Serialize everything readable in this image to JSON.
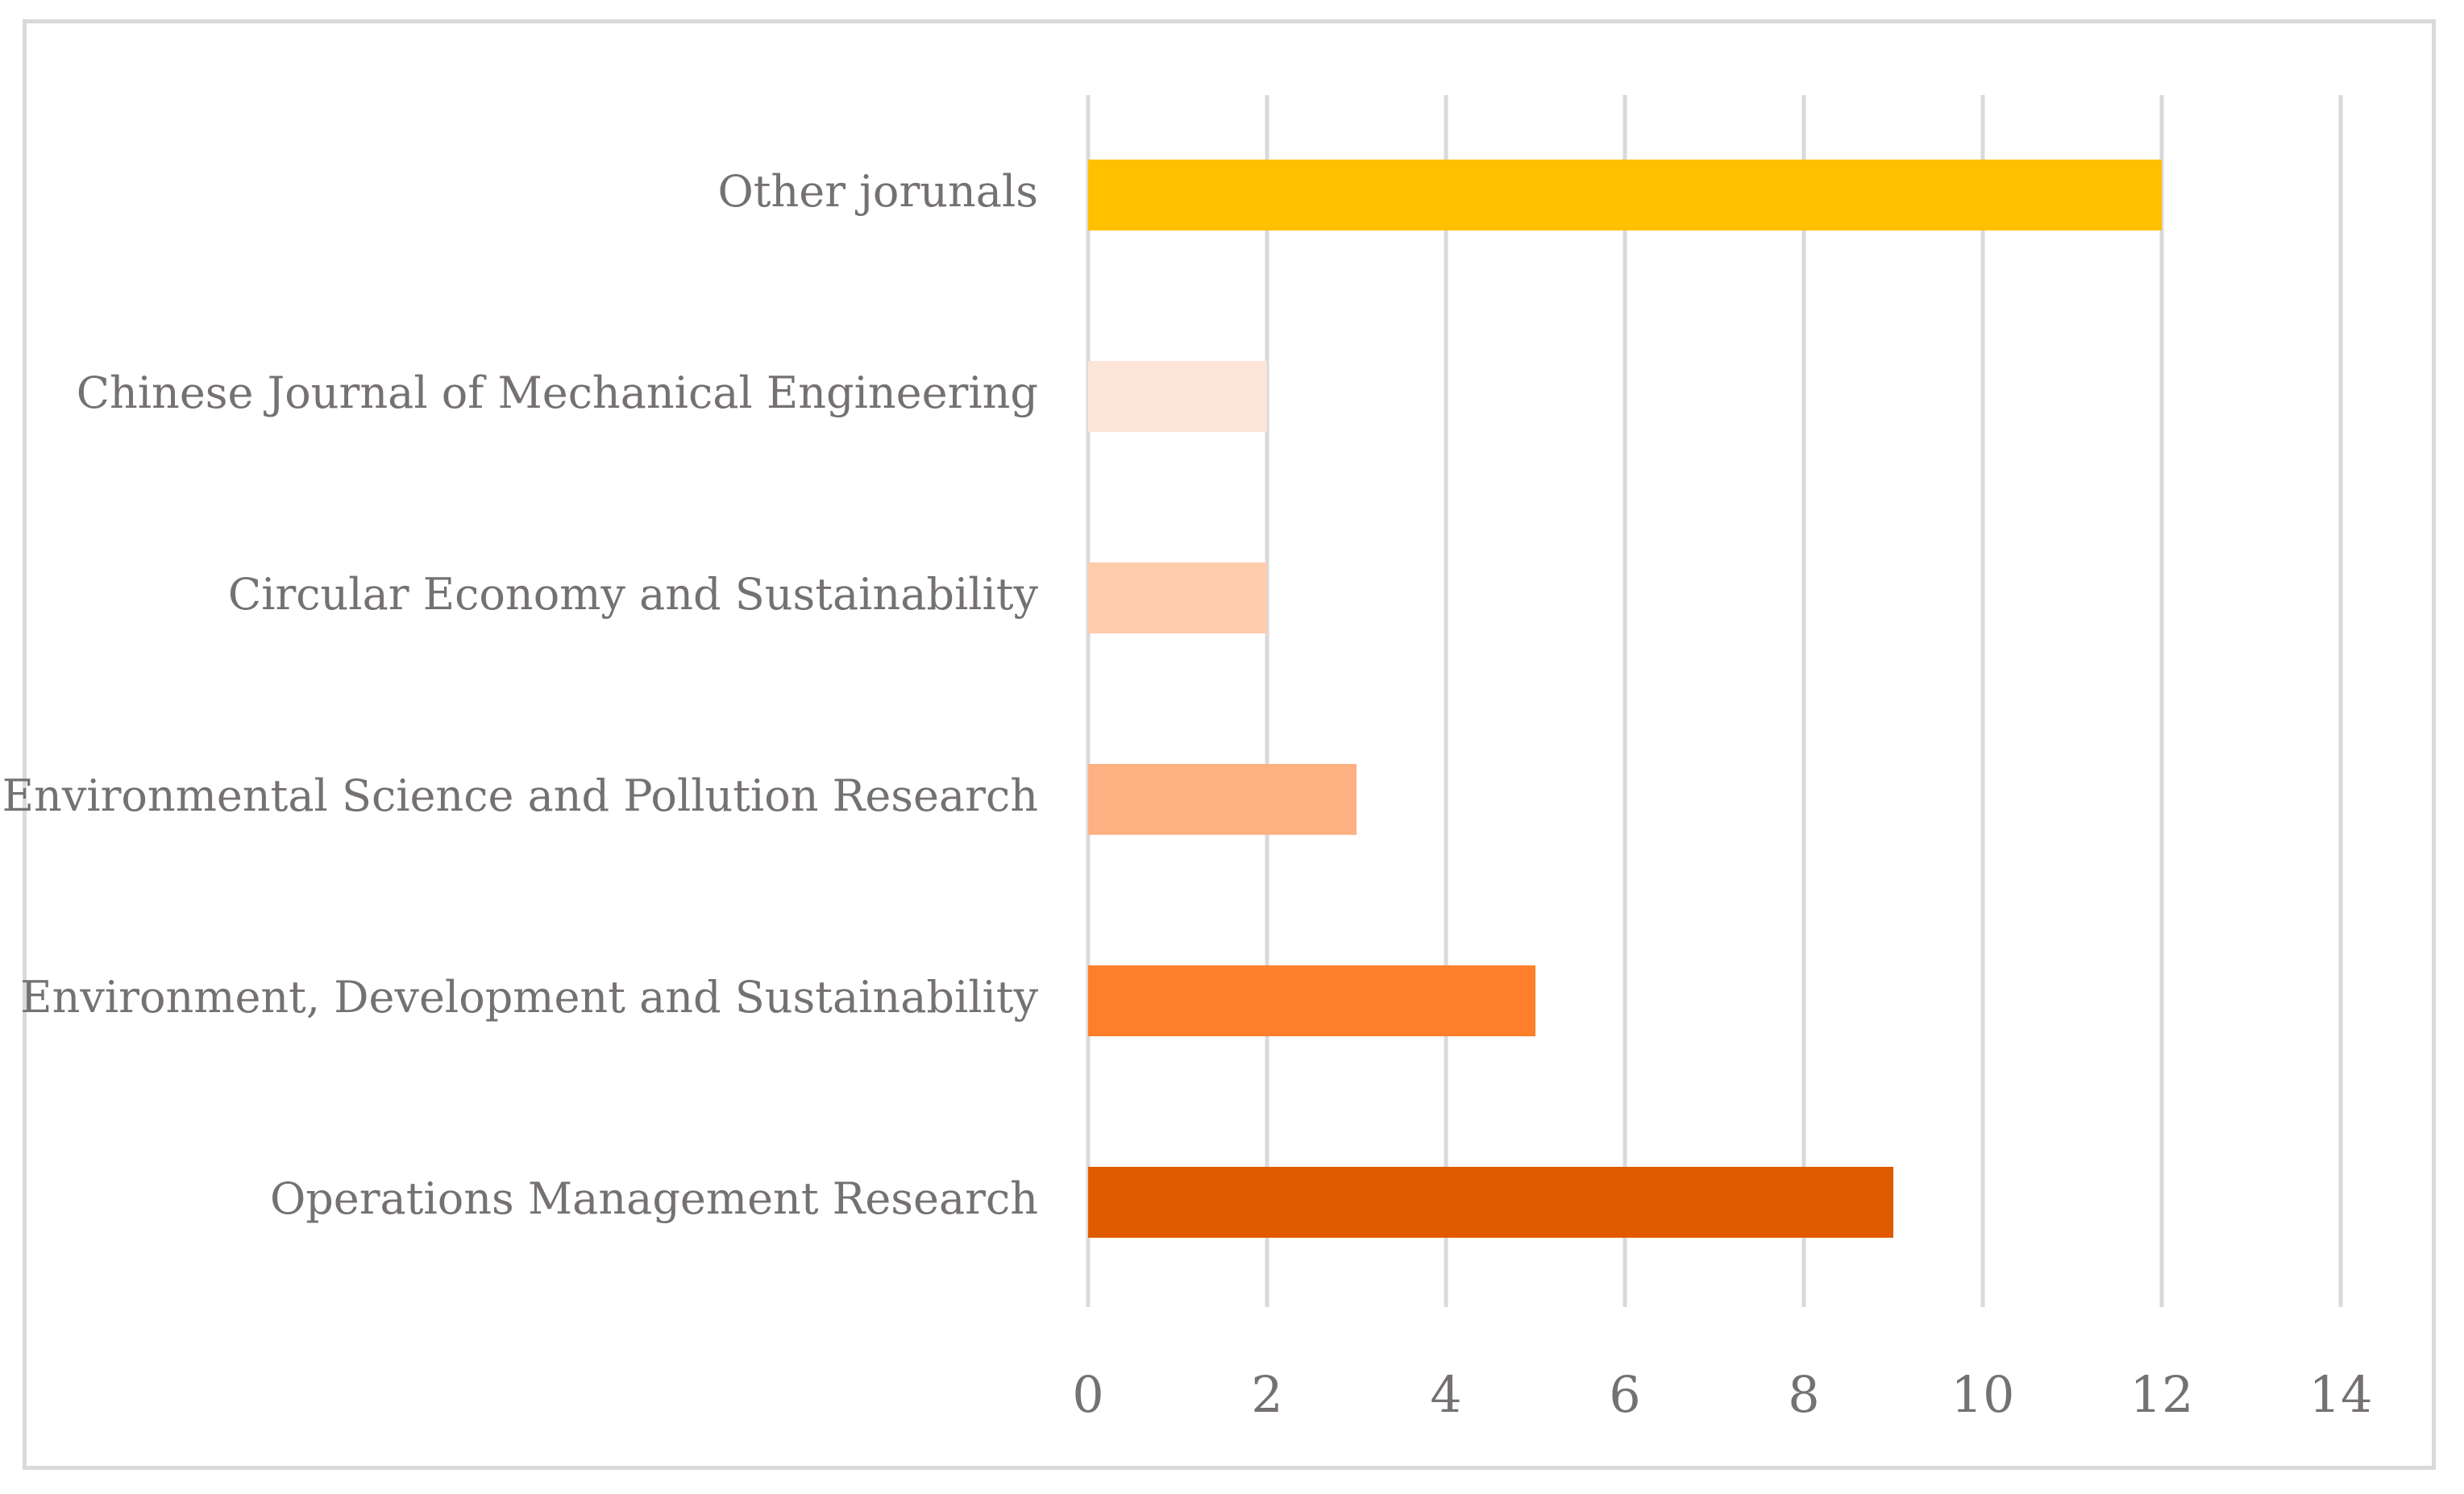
{
  "chart_data": {
    "type": "bar",
    "orientation": "horizontal",
    "title": "",
    "xlabel": "",
    "ylabel": "",
    "categories": [
      "Other jorunals",
      "Chinese Journal of Mechanical Engineering",
      "Circular Economy and Sustainability",
      "Environmental Science and Pollution Research",
      "Environment, Development and Sustainability",
      "Operations Management Research"
    ],
    "values": [
      12,
      2,
      2,
      3,
      5,
      9
    ],
    "colors": [
      "#ffc000",
      "#fde5d8",
      "#fecbad",
      "#fdb183",
      "#fd7f2b",
      "#e05a00"
    ],
    "xlim": [
      0,
      14
    ],
    "ticks": [
      "0",
      "2",
      "4",
      "6",
      "8",
      "10",
      "12",
      "14"
    ],
    "grid": true,
    "gridline_color": "#d9d9d9",
    "label_color": "#767171"
  }
}
